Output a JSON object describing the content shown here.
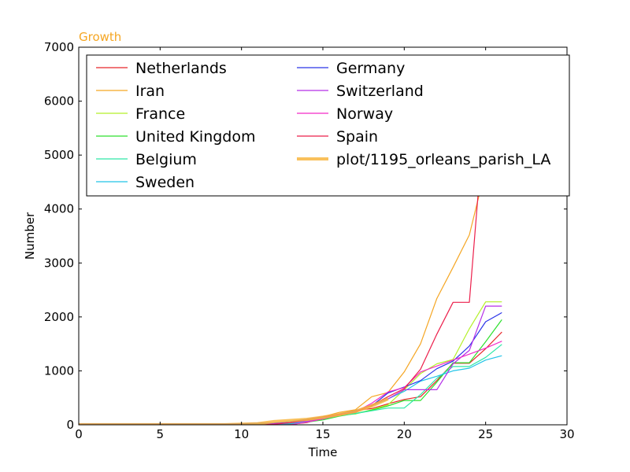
{
  "chart_data": {
    "type": "line",
    "title": "Growth",
    "xlabel": "Time",
    "ylabel": "Number",
    "xlim": [
      0,
      30
    ],
    "ylim": [
      0,
      7000
    ],
    "xticks": [
      0,
      5,
      10,
      15,
      20,
      25,
      30
    ],
    "yticks": [
      0,
      1000,
      2000,
      3000,
      4000,
      5000,
      6000,
      7000
    ],
    "grid": false,
    "legend_location": "top",
    "x": [
      0,
      1,
      2,
      3,
      4,
      5,
      6,
      7,
      8,
      9,
      10,
      11,
      12,
      13,
      14,
      15,
      16,
      17,
      18,
      19,
      20,
      21,
      22,
      23,
      24,
      25,
      26
    ],
    "series": [
      {
        "name": "Netherlands",
        "color": "#e8262a",
        "values": [
          0,
          0,
          0,
          0,
          0,
          0,
          0,
          0,
          0,
          0,
          0,
          1,
          2,
          10,
          40,
          120,
          190,
          270,
          300,
          390,
          470,
          520,
          820,
          1140,
          1140,
          1410,
          1720
        ]
      },
      {
        "name": "Iran",
        "color": "#f5a623",
        "values": [
          0,
          0,
          0,
          0,
          0,
          0,
          0,
          0,
          0,
          0,
          0,
          0,
          5,
          30,
          90,
          150,
          230,
          280,
          520,
          600,
          980,
          1500,
          2340,
          2920,
          3520,
          4750,
          4750
        ]
      },
      {
        "name": "France",
        "color": "#b4f029",
        "values": [
          0,
          0,
          0,
          0,
          0,
          0,
          0,
          0,
          0,
          0,
          0,
          10,
          20,
          40,
          90,
          130,
          180,
          200,
          280,
          370,
          650,
          950,
          1130,
          1210,
          1780,
          2280,
          2280
        ]
      },
      {
        "name": "United Kingdom",
        "color": "#2fe02f",
        "values": [
          0,
          0,
          0,
          0,
          0,
          0,
          0,
          0,
          0,
          0,
          2,
          5,
          10,
          20,
          50,
          90,
          160,
          210,
          270,
          350,
          450,
          450,
          790,
          1150,
          1150,
          1540,
          1950
        ]
      },
      {
        "name": "Belgium",
        "color": "#2de8a6",
        "values": [
          0,
          0,
          0,
          0,
          0,
          0,
          0,
          0,
          0,
          0,
          0,
          0,
          0,
          0,
          50,
          110,
          170,
          210,
          260,
          310,
          310,
          560,
          860,
          1080,
          1080,
          1250,
          1490
        ]
      },
      {
        "name": "Sweden",
        "color": "#22c4e8",
        "values": [
          0,
          0,
          0,
          0,
          0,
          0,
          0,
          0,
          0,
          0,
          0,
          0,
          0,
          20,
          60,
          140,
          200,
          260,
          350,
          480,
          620,
          810,
          900,
          1000,
          1050,
          1200,
          1280
        ]
      },
      {
        "name": "Germany",
        "color": "#2b35e8",
        "values": [
          20,
          20,
          20,
          20,
          20,
          20,
          20,
          20,
          20,
          20,
          20,
          30,
          30,
          60,
          100,
          150,
          200,
          260,
          350,
          590,
          700,
          820,
          1040,
          1180,
          1460,
          1910,
          2080
        ]
      },
      {
        "name": "Switzerland",
        "color": "#b52fe8",
        "values": [
          0,
          0,
          0,
          0,
          0,
          0,
          0,
          0,
          0,
          0,
          0,
          0,
          20,
          40,
          70,
          120,
          200,
          240,
          370,
          480,
          650,
          650,
          650,
          1130,
          1380,
          2200,
          2200
        ]
      },
      {
        "name": "Norway",
        "color": "#f229c7",
        "values": [
          0,
          0,
          0,
          0,
          0,
          0,
          0,
          0,
          0,
          0,
          0,
          0,
          0,
          0,
          50,
          110,
          180,
          240,
          400,
          610,
          690,
          980,
          1090,
          1200,
          1310,
          1420,
          1550
        ]
      },
      {
        "name": "Spain",
        "color": "#ec1f4b",
        "values": [
          0,
          0,
          0,
          0,
          0,
          0,
          0,
          0,
          0,
          0,
          0,
          0,
          10,
          40,
          90,
          150,
          190,
          230,
          360,
          520,
          670,
          1030,
          1680,
          2270,
          2270,
          6000,
          6000
        ]
      },
      {
        "name": "plot/1195_orleans_parish_LA",
        "color": "#f8b640",
        "thick": true,
        "values": [
          1,
          1,
          1,
          1,
          1,
          1,
          1,
          1,
          1,
          2,
          10,
          20,
          60,
          80,
          100,
          140,
          190,
          250,
          350,
          480,
          null,
          null,
          null,
          null,
          null,
          null,
          null
        ]
      }
    ]
  }
}
